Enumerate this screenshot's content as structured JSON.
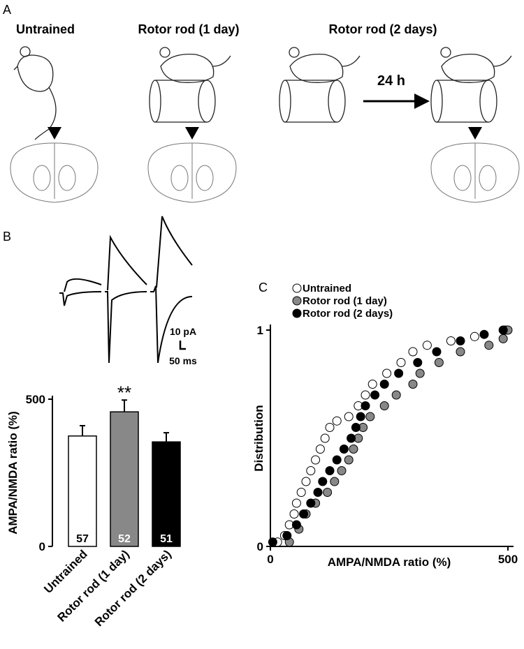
{
  "panel_labels": [
    "A",
    "B",
    "C"
  ],
  "panel_a": {
    "groups": [
      "Untrained",
      "Rotor rod (1 day)",
      "Rotor rod (2 days)"
    ],
    "interval": "24 h"
  },
  "panel_b_traces": {
    "scale_current": "10 pA",
    "scale_time": "50 ms"
  },
  "chart_data": [
    {
      "type": "bar",
      "ylabel": "AMPA/NMDA ratio (%)",
      "categories": [
        "Untrained",
        "Rotor rod (1 day)",
        "Rotor rod (2 days)"
      ],
      "values": [
        375,
        457,
        355
      ],
      "errors": [
        35,
        40,
        31
      ],
      "colors": [
        "#ffffff",
        "#888888",
        "#000000"
      ],
      "bar_counts": [
        57,
        52,
        51
      ],
      "significance_labels": [
        null,
        "**",
        null
      ],
      "ylim": [
        0,
        500
      ],
      "yticks": [
        0,
        500
      ]
    },
    {
      "type": "scatter",
      "xlabel": "AMPA/NMDA ratio (%)",
      "ylabel": "Distribution",
      "xlim": [
        0,
        500
      ],
      "xticks": [
        0,
        500
      ],
      "ylim": [
        0,
        1
      ],
      "yticks": [
        0,
        1
      ],
      "legend": "upper left",
      "series": [
        {
          "name": "Untrained",
          "color": "#ffffff",
          "x": [
            15,
            30,
            40,
            50,
            55,
            65,
            75,
            85,
            95,
            105,
            115,
            125,
            140,
            165,
            185,
            200,
            215,
            245,
            275,
            300,
            330,
            380,
            430,
            495
          ],
          "values": [
            0.02,
            0.05,
            0.1,
            0.15,
            0.2,
            0.25,
            0.3,
            0.35,
            0.4,
            0.45,
            0.5,
            0.55,
            0.58,
            0.6,
            0.65,
            0.7,
            0.75,
            0.8,
            0.85,
            0.9,
            0.93,
            0.95,
            0.97,
            1.0
          ]
        },
        {
          "name": "Rotor rod (1 day)",
          "color": "#888888",
          "x": [
            40,
            60,
            75,
            95,
            120,
            135,
            150,
            165,
            175,
            185,
            195,
            210,
            240,
            265,
            300,
            315,
            355,
            400,
            460,
            490,
            500
          ],
          "values": [
            0.02,
            0.08,
            0.15,
            0.2,
            0.25,
            0.3,
            0.35,
            0.4,
            0.45,
            0.5,
            0.55,
            0.6,
            0.65,
            0.7,
            0.75,
            0.8,
            0.85,
            0.9,
            0.93,
            0.96,
            1.0
          ]
        },
        {
          "name": "Rotor rod (2 days)",
          "color": "#000000",
          "x": [
            5,
            35,
            55,
            70,
            85,
            100,
            110,
            125,
            140,
            155,
            170,
            180,
            190,
            200,
            220,
            240,
            270,
            310,
            350,
            400,
            450,
            490
          ],
          "values": [
            0.02,
            0.05,
            0.1,
            0.15,
            0.2,
            0.25,
            0.3,
            0.35,
            0.4,
            0.45,
            0.5,
            0.55,
            0.6,
            0.65,
            0.7,
            0.75,
            0.8,
            0.85,
            0.9,
            0.95,
            0.98,
            1.0
          ]
        }
      ]
    }
  ]
}
